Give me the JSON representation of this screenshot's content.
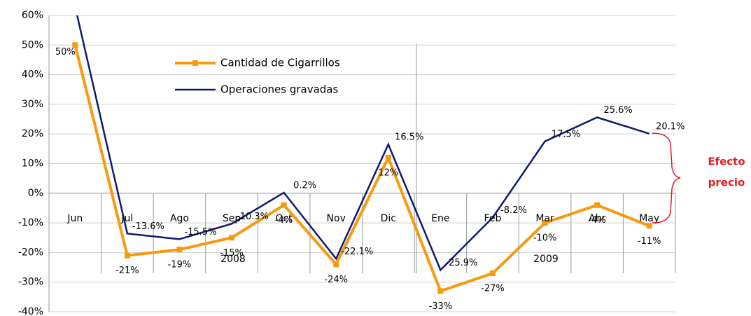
{
  "chart_data": {
    "type": "line",
    "categories": [
      "Jun",
      "Jul",
      "Ago",
      "Sep",
      "Oct",
      "Nov",
      "Dic",
      "Ene",
      "Feb",
      "Mar",
      "Abr",
      "May"
    ],
    "series": [
      {
        "name": "Cantidad de Cigarrillos",
        "color": "#f79a0e",
        "values": [
          50,
          -21,
          -19,
          -15,
          -4,
          -24,
          12,
          -33,
          -27,
          -10,
          -4,
          -11
        ],
        "value_labels": [
          "50%",
          "-21%",
          "-19%",
          "-15%",
          "-4%",
          "-24%",
          "12%",
          "-33%",
          "-27%",
          "-10%",
          "-4%",
          "-11%"
        ]
      },
      {
        "name": "Operaciones gravadas",
        "color": "#0f1a6e",
        "values": [
          63,
          -13.6,
          -15.5,
          -10.3,
          0.2,
          -22.1,
          16.5,
          -25.9,
          -8.2,
          17.5,
          25.6,
          20.1
        ],
        "value_labels": [
          null,
          "-13.6%",
          "-15.5%",
          "-10.3%",
          "0.2%",
          "-22.1%",
          "16.5%",
          "-25.9%",
          "-8.2%",
          "17.5%",
          "25.6%",
          "20.1%"
        ]
      }
    ],
    "ylim": [
      -40,
      60
    ],
    "yticks": [
      {
        "value": -40,
        "label": "-40%"
      },
      {
        "value": -30,
        "label": "-30%"
      },
      {
        "value": -20,
        "label": "-20%"
      },
      {
        "value": -10,
        "label": "-10%"
      },
      {
        "value": 0,
        "label": "0%"
      },
      {
        "value": 10,
        "label": "10%"
      },
      {
        "value": 20,
        "label": "20%"
      },
      {
        "value": 30,
        "label": "30%"
      },
      {
        "value": 40,
        "label": "40%"
      },
      {
        "value": 50,
        "label": "50%"
      },
      {
        "value": 60,
        "label": "60%"
      }
    ],
    "grid": true,
    "year_labels": [
      "2008",
      "2009"
    ],
    "annotation": [
      "Efecto",
      "precio"
    ]
  }
}
